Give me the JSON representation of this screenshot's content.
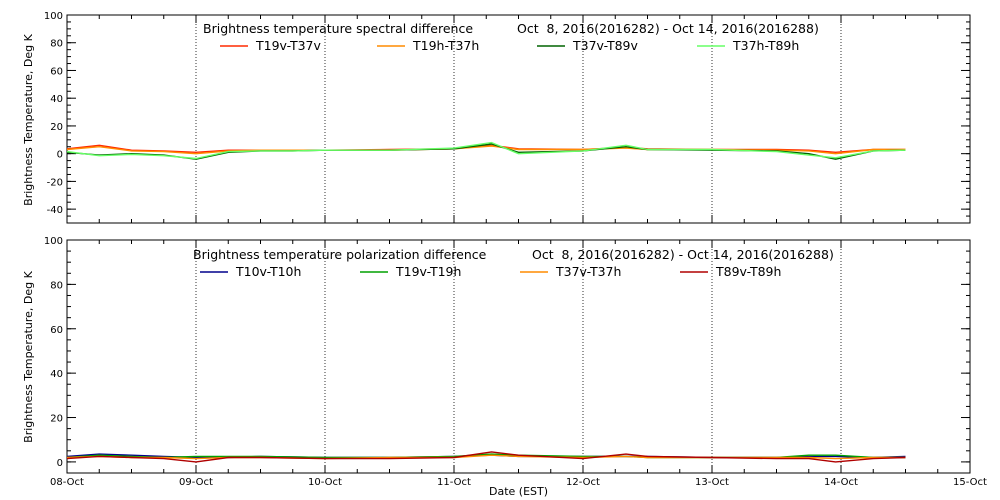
{
  "xlabel": "Date (EST)",
  "x_ticks": [
    "08-Oct",
    "09-Oct",
    "10-Oct",
    "11-Oct",
    "12-Oct",
    "13-Oct",
    "14-Oct",
    "15-Oct"
  ],
  "colors": {
    "background": "#ffffff",
    "axis": "#000000",
    "T19v-T37v": "#ff2a00",
    "T19h-T37h": "#ff8c00",
    "T37v-T89v": "#006400",
    "T37h-T89h": "#66ff66",
    "T10v-T10h": "#00008b",
    "T19v-T19h": "#00a000",
    "T37v-T37h": "#ff8c00",
    "T89v-T89h": "#b00000"
  },
  "chart_data": [
    {
      "type": "line",
      "title": "Brightness temperature spectral difference",
      "subtitle": "Oct  8, 2016(2016282) - Oct 14, 2016(2016288)",
      "xlabel": "",
      "ylabel": "Brightness Temperature, Deg K",
      "xlim": [
        "2016-10-08",
        "2016-10-15"
      ],
      "ylim": [
        -50,
        100
      ],
      "y_ticks": [
        "-40",
        "-20",
        "0",
        "20",
        "40",
        "60",
        "80",
        "100"
      ],
      "grid": "vertical dotted at day boundaries",
      "legend": "top, inside plot",
      "series": [
        {
          "name": "T19v-T37v",
          "color": "#ff2a00",
          "x": [
            "2016-10-08 00:00",
            "2016-10-08 06:00",
            "2016-10-08 12:00",
            "2016-10-08 18:00",
            "2016-10-09 00:00",
            "2016-10-09 06:00",
            "2016-10-09 12:00",
            "2016-10-09 18:00",
            "2016-10-10 00:00",
            "2016-10-10 12:00",
            "2016-10-11 00:00",
            "2016-10-11 07:00",
            "2016-10-11 12:00",
            "2016-10-12 00:00",
            "2016-10-12 08:00",
            "2016-10-12 12:00",
            "2016-10-13 00:00",
            "2016-10-13 12:00",
            "2016-10-13 18:00",
            "2016-10-13 23:00",
            "2016-10-14 06:00",
            "2016-10-14 12:00"
          ],
          "values": [
            3.5,
            6,
            2.5,
            2,
            1,
            2.5,
            2.5,
            2.5,
            2.5,
            3,
            3.5,
            6,
            3.5,
            3,
            4.5,
            3.5,
            3,
            3,
            2.5,
            1,
            3,
            3
          ]
        },
        {
          "name": "T19h-T37h",
          "color": "#ff8c00",
          "x": [
            "2016-10-08 00:00",
            "2016-10-08 06:00",
            "2016-10-08 12:00",
            "2016-10-08 18:00",
            "2016-10-09 00:00",
            "2016-10-09 06:00",
            "2016-10-09 12:00",
            "2016-10-09 18:00",
            "2016-10-10 00:00",
            "2016-10-10 12:00",
            "2016-10-11 00:00",
            "2016-10-11 07:00",
            "2016-10-11 12:00",
            "2016-10-12 00:00",
            "2016-10-12 08:00",
            "2016-10-12 12:00",
            "2016-10-13 00:00",
            "2016-10-13 12:00",
            "2016-10-13 18:00",
            "2016-10-13 23:00",
            "2016-10-14 06:00",
            "2016-10-14 12:00"
          ],
          "values": [
            3,
            5,
            2,
            1.5,
            0,
            2,
            2.5,
            2.5,
            2.5,
            2.5,
            3.5,
            5.5,
            3,
            3,
            4,
            3,
            3,
            2.5,
            2,
            0,
            3,
            3
          ]
        },
        {
          "name": "T37v-T89v",
          "color": "#006400",
          "x": [
            "2016-10-08 00:00",
            "2016-10-08 06:00",
            "2016-10-08 12:00",
            "2016-10-08 18:00",
            "2016-10-09 00:00",
            "2016-10-09 06:00",
            "2016-10-09 12:00",
            "2016-10-09 18:00",
            "2016-10-10 00:00",
            "2016-10-10 12:00",
            "2016-10-11 00:00",
            "2016-10-11 07:00",
            "2016-10-11 12:00",
            "2016-10-12 00:00",
            "2016-10-12 08:00",
            "2016-10-12 12:00",
            "2016-10-13 00:00",
            "2016-10-13 12:00",
            "2016-10-13 18:00",
            "2016-10-13 23:00",
            "2016-10-14 06:00",
            "2016-10-14 12:00"
          ],
          "values": [
            1,
            -1,
            0,
            -1,
            -4,
            1,
            2,
            2,
            2.5,
            2.5,
            3.5,
            7,
            1,
            2,
            5,
            3,
            2.5,
            2,
            0,
            -4,
            2,
            2.5
          ]
        },
        {
          "name": "T37h-T89h",
          "color": "#66ff66",
          "x": [
            "2016-10-08 00:00",
            "2016-10-08 06:00",
            "2016-10-08 12:00",
            "2016-10-08 18:00",
            "2016-10-09 00:00",
            "2016-10-09 06:00",
            "2016-10-09 12:00",
            "2016-10-09 18:00",
            "2016-10-10 00:00",
            "2016-10-10 12:00",
            "2016-10-11 00:00",
            "2016-10-11 07:00",
            "2016-10-11 12:00",
            "2016-10-12 00:00",
            "2016-10-12 08:00",
            "2016-10-12 12:00",
            "2016-10-13 00:00",
            "2016-10-13 12:00",
            "2016-10-13 18:00",
            "2016-10-13 23:00",
            "2016-10-14 06:00",
            "2016-10-14 12:00"
          ],
          "values": [
            1.5,
            -1.5,
            -0.5,
            -1.5,
            -3.5,
            1.5,
            2,
            2,
            2.5,
            2.5,
            4,
            8,
            0,
            2,
            6,
            3,
            3,
            1.5,
            -1,
            -3,
            2,
            2.5
          ]
        }
      ]
    },
    {
      "type": "line",
      "title": "Brightness temperature polarization difference",
      "subtitle": "Oct  8, 2016(2016282) - Oct 14, 2016(2016288)",
      "xlabel": "Date (EST)",
      "ylabel": "Brightness Temperature, Deg K",
      "xlim": [
        "2016-10-08",
        "2016-10-15"
      ],
      "ylim": [
        -5,
        100
      ],
      "y_ticks": [
        "0",
        "20",
        "40",
        "60",
        "80",
        "100"
      ],
      "grid": "vertical dotted at day boundaries",
      "legend": "top, inside plot",
      "series": [
        {
          "name": "T10v-T10h",
          "color": "#00008b",
          "x": [
            "2016-10-08 00:00",
            "2016-10-08 06:00",
            "2016-10-08 12:00",
            "2016-10-08 18:00",
            "2016-10-09 00:00",
            "2016-10-09 06:00",
            "2016-10-09 12:00",
            "2016-10-10 00:00",
            "2016-10-10 12:00",
            "2016-10-11 00:00",
            "2016-10-11 07:00",
            "2016-10-11 12:00",
            "2016-10-12 00:00",
            "2016-10-12 08:00",
            "2016-10-12 12:00",
            "2016-10-13 00:00",
            "2016-10-13 12:00",
            "2016-10-13 18:00",
            "2016-10-13 23:00",
            "2016-10-14 06:00",
            "2016-10-14 12:00"
          ],
          "values": [
            2.5,
            3.5,
            3,
            2.5,
            2,
            2,
            2.5,
            2,
            2,
            2.5,
            3,
            2.5,
            2.5,
            2.5,
            2.5,
            2,
            2,
            2.5,
            2.5,
            2,
            2.5
          ]
        },
        {
          "name": "T19v-T19h",
          "color": "#00a000",
          "x": [
            "2016-10-08 00:00",
            "2016-10-08 06:00",
            "2016-10-08 12:00",
            "2016-10-08 18:00",
            "2016-10-09 00:00",
            "2016-10-09 06:00",
            "2016-10-09 12:00",
            "2016-10-10 00:00",
            "2016-10-10 12:00",
            "2016-10-11 00:00",
            "2016-10-11 07:00",
            "2016-10-11 12:00",
            "2016-10-12 00:00",
            "2016-10-12 08:00",
            "2016-10-12 12:00",
            "2016-10-13 00:00",
            "2016-10-13 12:00",
            "2016-10-13 18:00",
            "2016-10-13 23:00",
            "2016-10-14 06:00",
            "2016-10-14 12:00"
          ],
          "values": [
            2,
            3,
            2.5,
            2,
            2.5,
            2.5,
            2.5,
            2,
            2,
            2.5,
            3.5,
            3,
            2.5,
            2.5,
            2,
            2,
            2,
            3,
            3,
            2,
            2
          ]
        },
        {
          "name": "T37v-T37h",
          "color": "#ff8c00",
          "x": [
            "2016-10-08 00:00",
            "2016-10-08 06:00",
            "2016-10-08 12:00",
            "2016-10-08 18:00",
            "2016-10-09 00:00",
            "2016-10-09 06:00",
            "2016-10-09 12:00",
            "2016-10-10 00:00",
            "2016-10-10 12:00",
            "2016-10-11 00:00",
            "2016-10-11 07:00",
            "2016-10-11 12:00",
            "2016-10-12 00:00",
            "2016-10-12 08:00",
            "2016-10-12 12:00",
            "2016-10-13 00:00",
            "2016-10-13 12:00",
            "2016-10-13 18:00",
            "2016-10-13 23:00",
            "2016-10-14 06:00",
            "2016-10-14 12:00"
          ],
          "values": [
            2,
            2.5,
            2,
            2,
            1.5,
            2,
            2,
            1.5,
            2,
            2,
            3,
            2.5,
            2,
            2.5,
            2,
            2,
            2,
            2,
            1.5,
            2,
            2
          ]
        },
        {
          "name": "T89v-T89h",
          "color": "#b00000",
          "x": [
            "2016-10-08 00:00",
            "2016-10-08 06:00",
            "2016-10-08 12:00",
            "2016-10-08 18:00",
            "2016-10-09 00:00",
            "2016-10-09 06:00",
            "2016-10-09 12:00",
            "2016-10-10 00:00",
            "2016-10-10 12:00",
            "2016-10-11 00:00",
            "2016-10-11 07:00",
            "2016-10-11 12:00",
            "2016-10-12 00:00",
            "2016-10-12 08:00",
            "2016-10-12 12:00",
            "2016-10-13 00:00",
            "2016-10-13 12:00",
            "2016-10-13 18:00",
            "2016-10-13 23:00",
            "2016-10-14 06:00",
            "2016-10-14 12:00"
          ],
          "values": [
            1.5,
            2.5,
            2,
            1.5,
            0,
            2,
            2,
            1.5,
            1.5,
            2,
            4.5,
            3,
            1.5,
            3.5,
            2.5,
            2,
            1.5,
            1.5,
            0,
            1.5,
            2
          ]
        }
      ]
    }
  ]
}
